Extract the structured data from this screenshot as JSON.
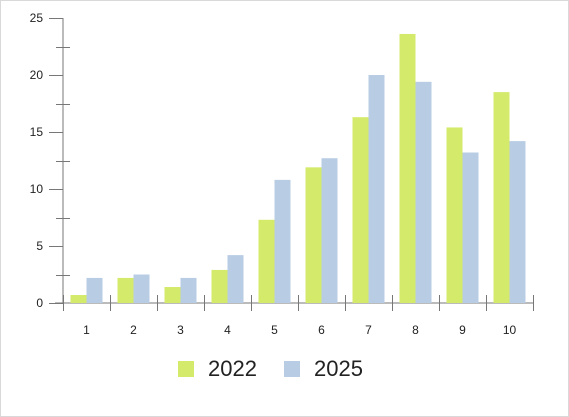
{
  "chart_data": {
    "type": "bar",
    "categories": [
      "1",
      "2",
      "3",
      "4",
      "5",
      "6",
      "7",
      "8",
      "9",
      "10"
    ],
    "series": [
      {
        "name": "2022",
        "color": "#d4ea6b",
        "values": [
          0.7,
          2.2,
          1.4,
          2.9,
          7.3,
          11.9,
          16.3,
          23.6,
          15.4,
          18.5
        ]
      },
      {
        "name": "2025",
        "color": "#b8cce4",
        "values": [
          2.2,
          2.5,
          2.2,
          4.2,
          10.8,
          12.7,
          20.0,
          19.4,
          13.2,
          14.2
        ]
      }
    ],
    "ylim": [
      0,
      25
    ],
    "yticks": [
      "0",
      "5",
      "10",
      "15",
      "20",
      "25"
    ],
    "grid": false,
    "legend_position": "bottom-center",
    "axis_color": "#777777"
  }
}
